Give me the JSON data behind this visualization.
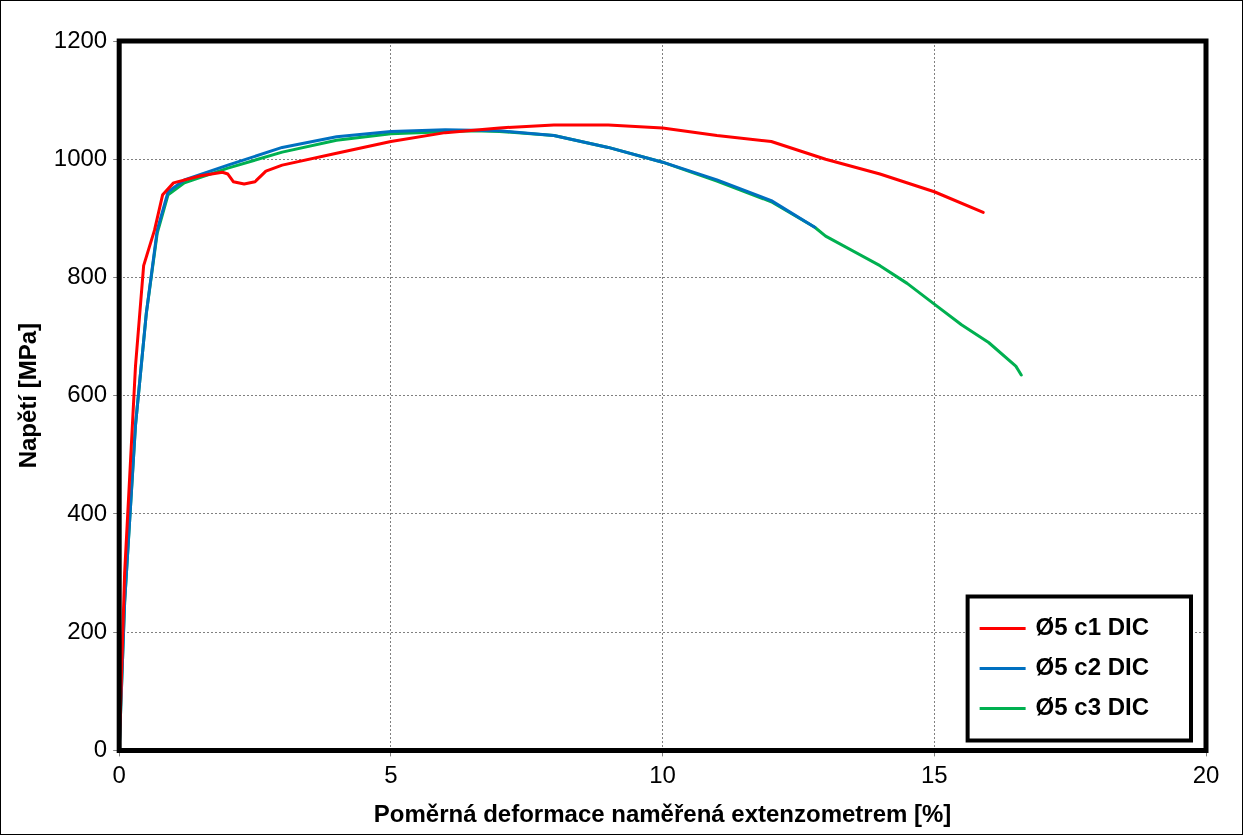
{
  "chart_data": {
    "type": "line",
    "xlabel": "Poměrná deformace naměřená extenzometrem [%]",
    "ylabel": "Napětí [MPa]",
    "xlim": [
      0,
      20
    ],
    "xticks": [
      0,
      5,
      10,
      15,
      20
    ],
    "ylim": [
      0,
      1200
    ],
    "yticks": [
      0,
      200,
      400,
      600,
      800,
      1000,
      1200
    ],
    "grid": true,
    "legend": "bottom right",
    "marker": "none",
    "line_style": "solid",
    "series": [
      {
        "name": "Ø5 c1 DIC",
        "color": "#ff0000",
        "x": [
          0,
          0.1,
          0.3,
          0.45,
          0.55,
          0.65,
          0.8,
          1.0,
          1.5,
          1.9,
          2.0,
          2.1,
          2.3,
          2.5,
          2.7,
          3,
          4,
          5,
          6,
          7,
          8,
          9,
          10,
          11,
          12,
          13,
          14,
          15,
          15.9
        ],
        "values": [
          0,
          300,
          650,
          820,
          850,
          880,
          940,
          960,
          972,
          978,
          975,
          962,
          958,
          962,
          980,
          990,
          1010,
          1030,
          1045,
          1053,
          1058,
          1058,
          1053,
          1040,
          1030,
          1000,
          975,
          945,
          910
        ]
      },
      {
        "name": "Ø5 c2 DIC",
        "color": "#0070c0",
        "x": [
          0,
          0.1,
          0.3,
          0.5,
          0.7,
          0.9,
          1.2,
          2,
          3,
          4,
          5,
          6,
          7,
          8,
          9,
          10,
          11,
          12,
          12.8
        ],
        "values": [
          0,
          250,
          550,
          740,
          880,
          945,
          965,
          990,
          1020,
          1038,
          1047,
          1050,
          1048,
          1040,
          1020,
          995,
          965,
          930,
          885
        ]
      },
      {
        "name": "Ø5 c3 DIC",
        "color": "#00b050",
        "x": [
          0,
          0.1,
          0.3,
          0.5,
          0.7,
          0.9,
          1.2,
          2,
          3,
          4,
          5,
          6.5,
          7,
          8,
          9,
          10,
          11,
          12,
          12.8,
          13,
          14,
          14.5,
          15,
          15.5,
          16,
          16.5,
          16.6
        ],
        "values": [
          0,
          250,
          550,
          740,
          875,
          940,
          960,
          985,
          1012,
          1032,
          1043,
          1048,
          1047,
          1040,
          1020,
          995,
          963,
          928,
          885,
          870,
          820,
          790,
          755,
          720,
          690,
          650,
          635
        ]
      }
    ]
  }
}
